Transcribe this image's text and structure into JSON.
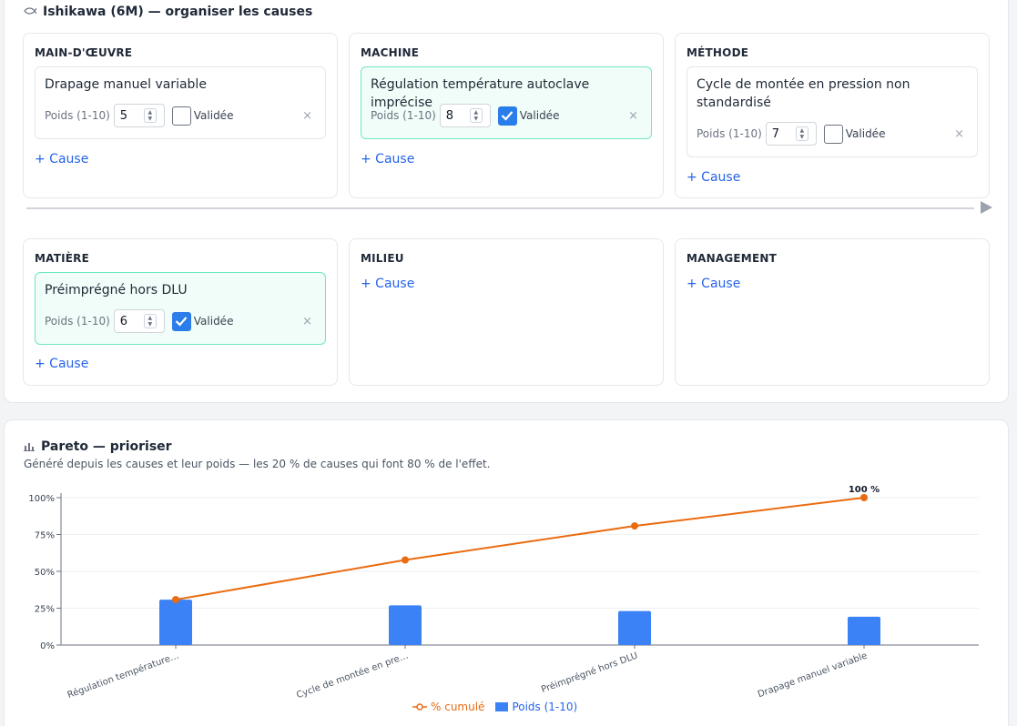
{
  "ishikawa": {
    "icon": "fish-icon",
    "title": "Ishikawa (6M) — organiser les causes",
    "add_label": "+ Cause",
    "weight_label": "Poids (1-10)",
    "validated_label": "Validée",
    "remove_symbol": "×",
    "categories": [
      {
        "name": "MAIN-D'ŒUVRE",
        "causes": [
          {
            "text": "Drapage manuel variable",
            "weight": "5",
            "validated": false
          }
        ]
      },
      {
        "name": "MACHINE",
        "causes": [
          {
            "text": "Régulation température autoclave imprécise",
            "weight": "8",
            "validated": true
          }
        ]
      },
      {
        "name": "MÉTHODE",
        "causes": [
          {
            "text": "Cycle de montée en pression non standardisé",
            "weight": "7",
            "validated": false
          }
        ]
      },
      {
        "name": "MATIÈRE",
        "causes": [
          {
            "text": "Préimprégné hors DLU",
            "weight": "6",
            "validated": true
          }
        ]
      },
      {
        "name": "MILIEU",
        "causes": []
      },
      {
        "name": "MANAGEMENT",
        "causes": []
      }
    ]
  },
  "pareto": {
    "icon": "bar-chart-icon",
    "title": "Pareto — prioriser",
    "subtitle": "Généré depuis les causes et leur poids — les 20 % de causes qui font 80 % de l'effet.",
    "legend_cumulative": "% cumulé",
    "legend_weight": "Poids (1-10)"
  },
  "chart_data": {
    "type": "bar",
    "categories": [
      "Régulation température…",
      "Cycle de montée en pre…",
      "Préimprégné hors DLU",
      "Drapage manuel variable"
    ],
    "series": [
      {
        "name": "Poids (1-10)",
        "type": "bar",
        "values": [
          8,
          7,
          6,
          5
        ],
        "color": "#3b82f6"
      },
      {
        "name": "% cumulé",
        "type": "line",
        "values": [
          30.8,
          57.7,
          80.8,
          100
        ],
        "color": "#ea6b10"
      }
    ],
    "y_ticks": [
      "0%",
      "25%",
      "50%",
      "75%",
      "100%"
    ],
    "ylim": [
      0,
      100
    ],
    "annotations": [
      "100 %"
    ],
    "legend_position": "bottom"
  }
}
